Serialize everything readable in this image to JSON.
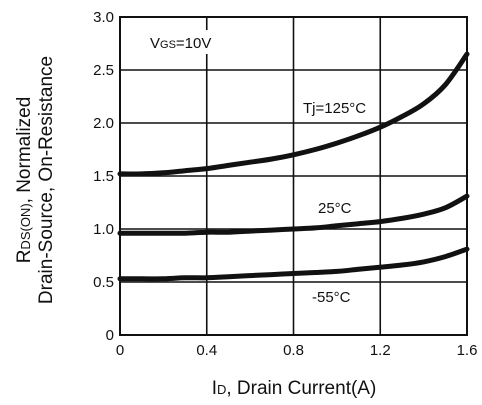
{
  "chart_data": {
    "type": "line",
    "x_ticks": [
      "0",
      "0.4",
      "0.8",
      "1.2",
      "1.6"
    ],
    "y_ticks": [
      "0",
      "0.5",
      "1.0",
      "1.5",
      "2.0",
      "2.5",
      "3.0"
    ],
    "xlim": [
      0,
      1.6
    ],
    "ylim": [
      0,
      3.0
    ],
    "grid": true,
    "xlabel": {
      "main": "I",
      "sub": "D",
      "rest": ", Drain Current(A)"
    },
    "ylabel": {
      "line1_main": "R",
      "line1_sub": "DS(ON)",
      "line1_rest": ", Normalized",
      "line2": "Drain-Source, On-Resistance"
    },
    "condition": {
      "main": "V",
      "sub": "GS",
      "rest": "=10V"
    },
    "series": [
      {
        "name": "Tj=125°C",
        "x": [
          0,
          0.1,
          0.2,
          0.3,
          0.4,
          0.5,
          0.6,
          0.7,
          0.8,
          0.9,
          1.0,
          1.1,
          1.2,
          1.3,
          1.4,
          1.5,
          1.6
        ],
        "y": [
          1.52,
          1.52,
          1.53,
          1.55,
          1.57,
          1.6,
          1.63,
          1.66,
          1.7,
          1.75,
          1.81,
          1.88,
          1.96,
          2.06,
          2.18,
          2.36,
          2.65
        ]
      },
      {
        "name": "25°C",
        "x": [
          0,
          0.1,
          0.2,
          0.3,
          0.4,
          0.5,
          0.6,
          0.7,
          0.8,
          0.9,
          1.0,
          1.1,
          1.2,
          1.3,
          1.4,
          1.5,
          1.6
        ],
        "y": [
          0.96,
          0.96,
          0.96,
          0.96,
          0.97,
          0.97,
          0.98,
          0.99,
          1.0,
          1.01,
          1.03,
          1.05,
          1.07,
          1.1,
          1.14,
          1.2,
          1.31
        ]
      },
      {
        "name": "-55°C",
        "x": [
          0,
          0.1,
          0.2,
          0.3,
          0.4,
          0.5,
          0.6,
          0.7,
          0.8,
          0.9,
          1.0,
          1.1,
          1.2,
          1.3,
          1.4,
          1.5,
          1.6
        ],
        "y": [
          0.53,
          0.53,
          0.53,
          0.54,
          0.54,
          0.55,
          0.56,
          0.57,
          0.58,
          0.59,
          0.6,
          0.62,
          0.64,
          0.66,
          0.69,
          0.74,
          0.81
        ]
      }
    ],
    "curve_labels": [
      "Tj=125°C",
      "25°C",
      "-55°C"
    ],
    "line_color": "#111111",
    "grid_color": "#111111"
  }
}
